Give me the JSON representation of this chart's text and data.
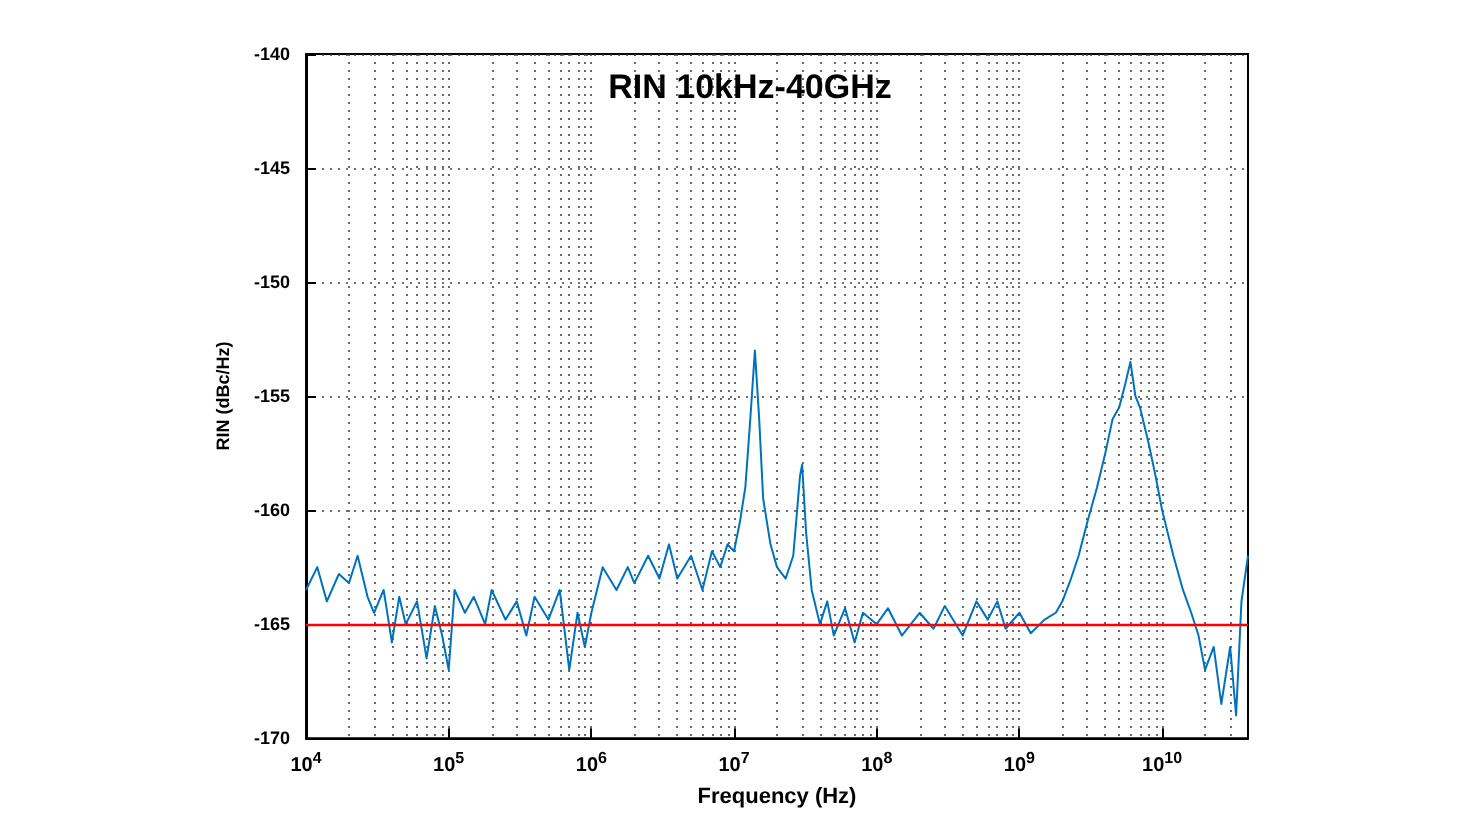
{
  "chart_data": {
    "type": "line",
    "title": "RIN 10kHz-40GHz",
    "xlabel": "Frequency (Hz)",
    "ylabel": "RIN (dBc/Hz)",
    "log": "x",
    "grid": true,
    "marker": "none",
    "line_style": "solid",
    "xlim": [
      10000.0,
      40000000000.0
    ],
    "xticks": [
      {
        "value": 10000.0,
        "label": "10$^{4}$"
      },
      {
        "value": 100000.0,
        "label": "10$^{5}$"
      },
      {
        "value": 1000000.0,
        "label": "10$^{6}$"
      },
      {
        "value": 10000000.0,
        "label": "10$^{7}$"
      },
      {
        "value": 100000000.0,
        "label": "10$^{8}$"
      },
      {
        "value": 1000000000.0,
        "label": "10$^{9}$"
      },
      {
        "value": 10000000000.0,
        "label": "10$^{10}$"
      }
    ],
    "ylim": [
      -170,
      -140
    ],
    "yticks": [
      -170,
      -165,
      -160,
      -155,
      -150,
      -145,
      -140
    ],
    "ref_lines": [
      {
        "axis": "y",
        "value": -165,
        "label": null,
        "color": "#ff0000",
        "line_style": "solid"
      }
    ],
    "series": [
      {
        "color": "#0072bd",
        "x": [
          10000.0,
          12000.0,
          14000.0,
          17000.0,
          20000.0,
          23000.0,
          27000.0,
          30000.0,
          35000.0,
          40000.0,
          45000.0,
          50000.0,
          60000.0,
          70000.0,
          80000.0,
          90000.0,
          100000.0,
          110000.0,
          130000.0,
          150000.0,
          180000.0,
          200000.0,
          250000.0,
          300000.0,
          350000.0,
          400000.0,
          500000.0,
          600000.0,
          700000.0,
          800000.0,
          900000.0,
          1000000.0,
          1200000.0,
          1500000.0,
          1800000.0,
          2000000.0,
          2500000.0,
          3000000.0,
          3500000.0,
          4000000.0,
          5000000.0,
          6000000.0,
          7000000.0,
          8000000.0,
          9000000.0,
          10000000.0,
          11000000.0,
          12000000.0,
          13000000.0,
          14000000.0,
          15000000.0,
          16000000.0,
          18000000.0,
          20000000.0,
          23000000.0,
          26000000.0,
          29000000.0,
          30000000.0,
          32000000.0,
          35000000.0,
          40000000.0,
          45000000.0,
          50000000.0,
          60000000.0,
          70000000.0,
          80000000.0,
          100000000.0,
          120000000.0,
          150000000.0,
          200000000.0,
          250000000.0,
          300000000.0,
          400000000.0,
          500000000.0,
          600000000.0,
          700000000.0,
          800000000.0,
          1000000000.0,
          1200000000.0,
          1500000000.0,
          1800000000.0,
          2000000000.0,
          2300000000.0,
          2600000000.0,
          3000000000.0,
          3500000000.0,
          4000000000.0,
          4500000000.0,
          5000000000.0,
          5500000000.0,
          6000000000.0,
          6500000000.0,
          7000000000.0,
          8000000000.0,
          9000000000.0,
          10000000000.0,
          12000000000.0,
          14000000000.0,
          16000000000.0,
          18000000000.0,
          20000000000.0,
          23000000000.0,
          26000000000.0,
          30000000000.0,
          33000000000.0,
          36000000000.0,
          40000000000.0
        ],
        "values": [
          -163.5,
          -162.5,
          -164,
          -162.8,
          -163.2,
          -162,
          -163.8,
          -164.5,
          -163.5,
          -165.8,
          -163.8,
          -165,
          -164,
          -166.5,
          -164.2,
          -165.5,
          -167,
          -163.5,
          -164.5,
          -163.8,
          -165,
          -163.5,
          -164.8,
          -164,
          -165.5,
          -163.8,
          -164.8,
          -163.5,
          -167,
          -164.5,
          -166,
          -164.5,
          -162.5,
          -163.5,
          -162.5,
          -163.2,
          -162,
          -163,
          -161.5,
          -163,
          -162,
          -163.5,
          -161.8,
          -162.5,
          -161.5,
          -161.8,
          -160.5,
          -159,
          -156,
          -153,
          -156,
          -159.5,
          -161.5,
          -162.5,
          -163,
          -162,
          -158.5,
          -158,
          -161,
          -163.5,
          -165,
          -164,
          -165.5,
          -164.3,
          -165.8,
          -164.5,
          -165,
          -164.3,
          -165.5,
          -164.5,
          -165.2,
          -164.2,
          -165.5,
          -164,
          -164.8,
          -164,
          -165.2,
          -164.5,
          -165.4,
          -164.8,
          -164.5,
          -164,
          -163,
          -162,
          -160.5,
          -159,
          -157.5,
          -156,
          -155.5,
          -154.5,
          -153.5,
          -155,
          -155.5,
          -157,
          -158.5,
          -160,
          -162,
          -163.5,
          -164.5,
          -165.5,
          -167,
          -166,
          -168.5,
          -166,
          -169,
          -164,
          -162
        ]
      }
    ]
  }
}
